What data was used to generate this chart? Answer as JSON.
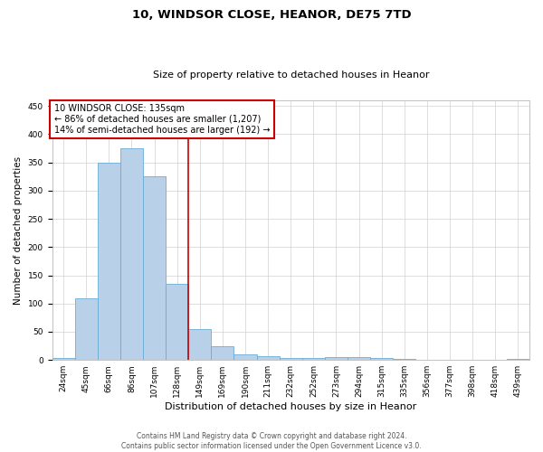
{
  "title_line1": "10, WINDSOR CLOSE, HEANOR, DE75 7TD",
  "title_line2": "Size of property relative to detached houses in Heanor",
  "xlabel": "Distribution of detached houses by size in Heanor",
  "ylabel": "Number of detached properties",
  "categories": [
    "24sqm",
    "45sqm",
    "66sqm",
    "86sqm",
    "107sqm",
    "128sqm",
    "149sqm",
    "169sqm",
    "190sqm",
    "211sqm",
    "232sqm",
    "252sqm",
    "273sqm",
    "294sqm",
    "315sqm",
    "335sqm",
    "356sqm",
    "377sqm",
    "398sqm",
    "418sqm",
    "439sqm"
  ],
  "values": [
    4,
    110,
    350,
    375,
    325,
    135,
    55,
    25,
    10,
    6,
    4,
    4,
    5,
    5,
    3,
    2,
    1,
    0,
    0,
    0,
    2
  ],
  "bar_color": "#b8d0e8",
  "bar_edge_color": "#6aaed6",
  "property_line_x": 5.5,
  "annotation_text_line1": "10 WINDSOR CLOSE: 135sqm",
  "annotation_text_line2": "← 86% of detached houses are smaller (1,207)",
  "annotation_text_line3": "14% of semi-detached houses are larger (192) →",
  "annotation_box_color": "#ffffff",
  "annotation_box_edge": "#cc0000",
  "vline_color": "#cc0000",
  "ylim": [
    0,
    460
  ],
  "yticks": [
    0,
    50,
    100,
    150,
    200,
    250,
    300,
    350,
    400,
    450
  ],
  "footnote_line1": "Contains HM Land Registry data © Crown copyright and database right 2024.",
  "footnote_line2": "Contains public sector information licensed under the Open Government Licence v3.0.",
  "background_color": "#ffffff",
  "grid_color": "#d0d0d0",
  "title1_fontsize": 9.5,
  "title2_fontsize": 8,
  "xlabel_fontsize": 8,
  "ylabel_fontsize": 7.5,
  "tick_fontsize": 6.5,
  "annot_fontsize": 7,
  "footnote_fontsize": 5.5
}
